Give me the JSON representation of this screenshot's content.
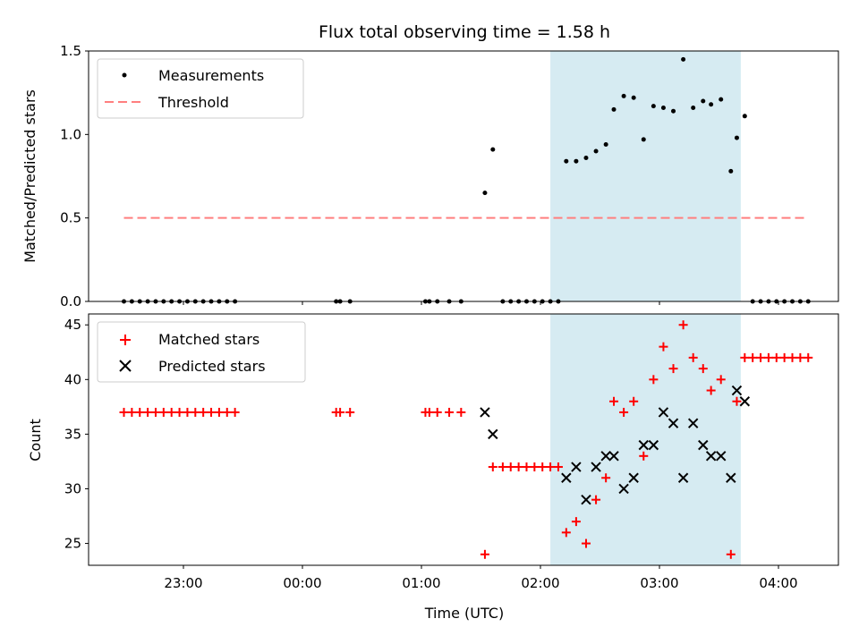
{
  "title": "Flux total observing time = 1.58 h",
  "chart_data": [
    {
      "type": "scatter",
      "ylabel": "Matched/Predicted stars",
      "ylim": [
        0,
        1.5
      ],
      "yticks": [
        0.0,
        0.5,
        1.0,
        1.5
      ],
      "ytick_labels": [
        "0.0",
        "0.5",
        "1.0",
        "1.5"
      ],
      "legend_position": "upper-left",
      "series": [
        {
          "name": "Measurements",
          "marker": "dot",
          "color": "#000000",
          "points": [
            [
              "22:30",
              0
            ],
            [
              "22:34",
              0
            ],
            [
              "22:38",
              0
            ],
            [
              "22:42",
              0
            ],
            [
              "22:46",
              0
            ],
            [
              "22:50",
              0
            ],
            [
              "22:54",
              0
            ],
            [
              "22:58",
              0
            ],
            [
              "23:02",
              0
            ],
            [
              "23:06",
              0
            ],
            [
              "23:10",
              0
            ],
            [
              "23:14",
              0
            ],
            [
              "23:18",
              0
            ],
            [
              "23:22",
              0
            ],
            [
              "23:26",
              0
            ],
            [
              "00:17",
              0
            ],
            [
              "00:19",
              0
            ],
            [
              "00:24",
              0
            ],
            [
              "01:02",
              0
            ],
            [
              "01:04",
              0
            ],
            [
              "01:08",
              0
            ],
            [
              "01:14",
              0
            ],
            [
              "01:20",
              0
            ],
            [
              "01:32",
              0.65
            ],
            [
              "01:36",
              0.91
            ],
            [
              "01:41",
              0
            ],
            [
              "01:45",
              0
            ],
            [
              "01:49",
              0
            ],
            [
              "01:53",
              0
            ],
            [
              "01:57",
              0
            ],
            [
              "02:01",
              0
            ],
            [
              "02:05",
              0
            ],
            [
              "02:09",
              0
            ],
            [
              "02:13",
              0.84
            ],
            [
              "02:18",
              0.84
            ],
            [
              "02:23",
              0.86
            ],
            [
              "02:28",
              0.9
            ],
            [
              "02:33",
              0.94
            ],
            [
              "02:37",
              1.15
            ],
            [
              "02:42",
              1.23
            ],
            [
              "02:47",
              1.22
            ],
            [
              "02:52",
              0.97
            ],
            [
              "02:57",
              1.17
            ],
            [
              "03:02",
              1.16
            ],
            [
              "03:07",
              1.14
            ],
            [
              "03:12",
              1.45
            ],
            [
              "03:17",
              1.16
            ],
            [
              "03:22",
              1.2
            ],
            [
              "03:26",
              1.18
            ],
            [
              "03:31",
              1.21
            ],
            [
              "03:36",
              0.78
            ],
            [
              "03:39",
              0.98
            ],
            [
              "03:43",
              1.11
            ],
            [
              "03:47",
              0
            ],
            [
              "03:51",
              0
            ],
            [
              "03:55",
              0
            ],
            [
              "03:59",
              0
            ],
            [
              "04:03",
              0
            ],
            [
              "04:07",
              0
            ],
            [
              "04:11",
              0
            ],
            [
              "04:15",
              0
            ]
          ]
        },
        {
          "name": "Threshold",
          "style": "dashed",
          "color": "#ff7f7f",
          "y": 0.5,
          "x_range": [
            "22:30",
            "04:15"
          ]
        }
      ],
      "highlight_span": {
        "x_range": [
          "02:05",
          "03:41"
        ],
        "color": "#add8e6"
      }
    },
    {
      "type": "scatter",
      "xlabel": "Time (UTC)",
      "ylabel": "Count",
      "ylim": [
        23,
        46
      ],
      "yticks": [
        25,
        30,
        35,
        40,
        45
      ],
      "ytick_labels": [
        "25",
        "30",
        "35",
        "40",
        "45"
      ],
      "xticks": [
        "23:00",
        "00:00",
        "01:00",
        "02:00",
        "03:00",
        "04:00"
      ],
      "xlim": [
        "22:00",
        "04:30"
      ],
      "legend_position": "upper-left",
      "series": [
        {
          "name": "Matched stars",
          "marker": "plus",
          "color": "#ff0000",
          "points": [
            [
              "22:30",
              37
            ],
            [
              "22:34",
              37
            ],
            [
              "22:38",
              37
            ],
            [
              "22:42",
              37
            ],
            [
              "22:46",
              37
            ],
            [
              "22:50",
              37
            ],
            [
              "22:54",
              37
            ],
            [
              "22:58",
              37
            ],
            [
              "23:02",
              37
            ],
            [
              "23:06",
              37
            ],
            [
              "23:10",
              37
            ],
            [
              "23:14",
              37
            ],
            [
              "23:18",
              37
            ],
            [
              "23:22",
              37
            ],
            [
              "23:26",
              37
            ],
            [
              "00:17",
              37
            ],
            [
              "00:19",
              37
            ],
            [
              "00:24",
              37
            ],
            [
              "01:02",
              37
            ],
            [
              "01:04",
              37
            ],
            [
              "01:08",
              37
            ],
            [
              "01:14",
              37
            ],
            [
              "01:20",
              37
            ],
            [
              "01:32",
              24
            ],
            [
              "01:36",
              32
            ],
            [
              "01:41",
              32
            ],
            [
              "01:45",
              32
            ],
            [
              "01:49",
              32
            ],
            [
              "01:53",
              32
            ],
            [
              "01:57",
              32
            ],
            [
              "02:01",
              32
            ],
            [
              "02:05",
              32
            ],
            [
              "02:09",
              32
            ],
            [
              "02:13",
              26
            ],
            [
              "02:18",
              27
            ],
            [
              "02:23",
              25
            ],
            [
              "02:28",
              29
            ],
            [
              "02:33",
              31
            ],
            [
              "02:37",
              38
            ],
            [
              "02:42",
              37
            ],
            [
              "02:47",
              38
            ],
            [
              "02:52",
              33
            ],
            [
              "02:57",
              40
            ],
            [
              "03:02",
              43
            ],
            [
              "03:07",
              41
            ],
            [
              "03:12",
              45
            ],
            [
              "03:17",
              42
            ],
            [
              "03:22",
              41
            ],
            [
              "03:26",
              39
            ],
            [
              "03:31",
              40
            ],
            [
              "03:36",
              24
            ],
            [
              "03:39",
              38
            ],
            [
              "03:43",
              42
            ],
            [
              "03:47",
              42
            ],
            [
              "03:51",
              42
            ],
            [
              "03:55",
              42
            ],
            [
              "03:59",
              42
            ],
            [
              "04:03",
              42
            ],
            [
              "04:07",
              42
            ],
            [
              "04:11",
              42
            ],
            [
              "04:15",
              42
            ]
          ]
        },
        {
          "name": "Predicted stars",
          "marker": "x",
          "color": "#000000",
          "points": [
            [
              "01:32",
              37
            ],
            [
              "01:36",
              35
            ],
            [
              "02:13",
              31
            ],
            [
              "02:18",
              32
            ],
            [
              "02:23",
              29
            ],
            [
              "02:28",
              32
            ],
            [
              "02:33",
              33
            ],
            [
              "02:37",
              33
            ],
            [
              "02:42",
              30
            ],
            [
              "02:47",
              31
            ],
            [
              "02:52",
              34
            ],
            [
              "02:57",
              34
            ],
            [
              "03:02",
              37
            ],
            [
              "03:07",
              36
            ],
            [
              "03:12",
              31
            ],
            [
              "03:17",
              36
            ],
            [
              "03:22",
              34
            ],
            [
              "03:26",
              33
            ],
            [
              "03:31",
              33
            ],
            [
              "03:36",
              31
            ],
            [
              "03:39",
              39
            ],
            [
              "03:43",
              38
            ]
          ]
        }
      ],
      "highlight_span": {
        "x_range": [
          "02:05",
          "03:41"
        ],
        "color": "#add8e6"
      }
    }
  ]
}
